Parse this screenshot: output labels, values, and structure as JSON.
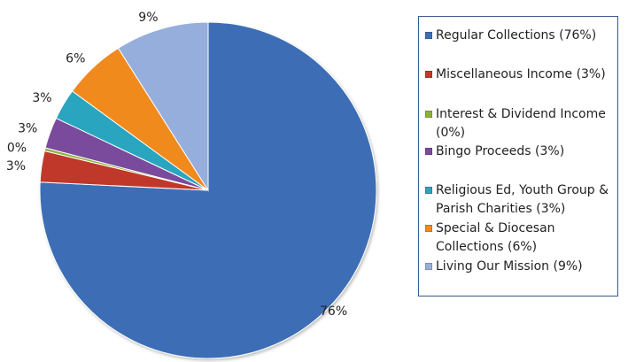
{
  "chart_data": {
    "type": "pie",
    "title": "",
    "start_angle_deg": 0,
    "direction": "clockwise",
    "legend_position": "right",
    "slices": [
      {
        "label": "Regular Collections (76%)",
        "value": 76,
        "data_label": "76%",
        "color": "#3d6eb5"
      },
      {
        "label": "Miscellaneous Income (3%)",
        "value": 3,
        "data_label": "3%",
        "color": "#c0392b"
      },
      {
        "label": "Interest & Dividend Income (0%)",
        "value": 0.3,
        "data_label": "0%",
        "color": "#8db23a"
      },
      {
        "label": "Bingo Proceeds (3%)",
        "value": 3,
        "data_label": "3%",
        "color": "#7a4b9c"
      },
      {
        "label": "Religious Ed, Youth Group & Parish Charities  (3%)",
        "value": 3,
        "data_label": "3%",
        "color": "#2aa5bf"
      },
      {
        "label": "Special & Diocesan Collections (6%)",
        "value": 6,
        "data_label": "6%",
        "color": "#f08a1c"
      },
      {
        "label": "Living Our Mission (9%)",
        "value": 9,
        "data_label": "9%",
        "color": "#96aedb"
      }
    ]
  }
}
